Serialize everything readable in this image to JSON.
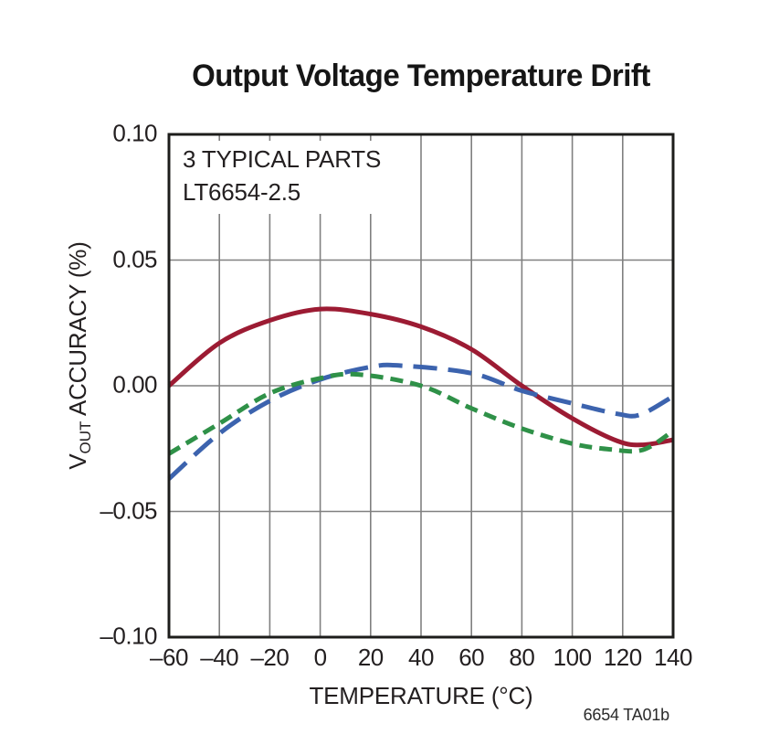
{
  "page": {
    "note": "6654 TA01b"
  },
  "chart_data": {
    "type": "line",
    "title": "Output Voltage Temperature Drift",
    "annotation": {
      "line1": "3 TYPICAL PARTS",
      "line2": "LT6654-2.5"
    },
    "xlabel": "TEMPERATURE (°C)",
    "ylabel": {
      "base": "V",
      "sub": "OUT",
      "rest": " ACCURACY (%)"
    },
    "xlim": [
      -60,
      140
    ],
    "ylim": [
      -0.1,
      0.1
    ],
    "grid": true,
    "legend": "none",
    "x_ticks": [
      {
        "value": -60,
        "label": "–60"
      },
      {
        "value": -40,
        "label": "–40"
      },
      {
        "value": -20,
        "label": "–20"
      },
      {
        "value": 0,
        "label": "0"
      },
      {
        "value": 20,
        "label": "20"
      },
      {
        "value": 40,
        "label": "40"
      },
      {
        "value": 60,
        "label": "60"
      },
      {
        "value": 80,
        "label": "80"
      },
      {
        "value": 100,
        "label": "100"
      },
      {
        "value": 120,
        "label": "120"
      },
      {
        "value": 140,
        "label": "140"
      }
    ],
    "y_ticks": [
      {
        "value": 0.1,
        "label": "0.10"
      },
      {
        "value": 0.05,
        "label": "0.05"
      },
      {
        "value": 0.0,
        "label": "0.00"
      },
      {
        "value": -0.05,
        "label": "–0.05"
      },
      {
        "value": -0.1,
        "label": "–0.10"
      }
    ],
    "colors": {
      "frame": "#1d1d1b",
      "grid": "#808080",
      "text": "#231f20"
    },
    "series": [
      {
        "id": "typical-part-1",
        "line_style": "solid",
        "color": "#9c1b33",
        "dash": "",
        "points": [
          [
            -60,
            0.0
          ],
          [
            -40,
            0.017
          ],
          [
            -20,
            0.026
          ],
          [
            0,
            0.0305
          ],
          [
            20,
            0.0285
          ],
          [
            40,
            0.0235
          ],
          [
            60,
            0.0145
          ],
          [
            80,
            0.0
          ],
          [
            100,
            -0.013
          ],
          [
            118,
            -0.022
          ],
          [
            128,
            -0.0235
          ],
          [
            140,
            -0.0215
          ]
        ]
      },
      {
        "id": "typical-part-2",
        "line_style": "long-dash",
        "color": "#3c63ae",
        "dash": "26 12",
        "points": [
          [
            -60,
            -0.037
          ],
          [
            -40,
            -0.019
          ],
          [
            -20,
            -0.006
          ],
          [
            0,
            0.0025
          ],
          [
            20,
            0.0075
          ],
          [
            32,
            0.008
          ],
          [
            60,
            0.005
          ],
          [
            80,
            -0.002
          ],
          [
            100,
            -0.007
          ],
          [
            118,
            -0.0112
          ],
          [
            127,
            -0.0115
          ],
          [
            140,
            -0.0042
          ]
        ]
      },
      {
        "id": "typical-part-3",
        "line_style": "short-dash",
        "color": "#2f9148",
        "dash": "14 8",
        "points": [
          [
            -60,
            -0.027
          ],
          [
            -40,
            -0.015
          ],
          [
            -20,
            -0.003
          ],
          [
            0,
            0.003
          ],
          [
            15,
            0.0045
          ],
          [
            40,
            0.0
          ],
          [
            60,
            -0.009
          ],
          [
            80,
            -0.017
          ],
          [
            100,
            -0.023
          ],
          [
            115,
            -0.0253
          ],
          [
            128,
            -0.0255
          ],
          [
            140,
            -0.018
          ]
        ]
      }
    ]
  }
}
